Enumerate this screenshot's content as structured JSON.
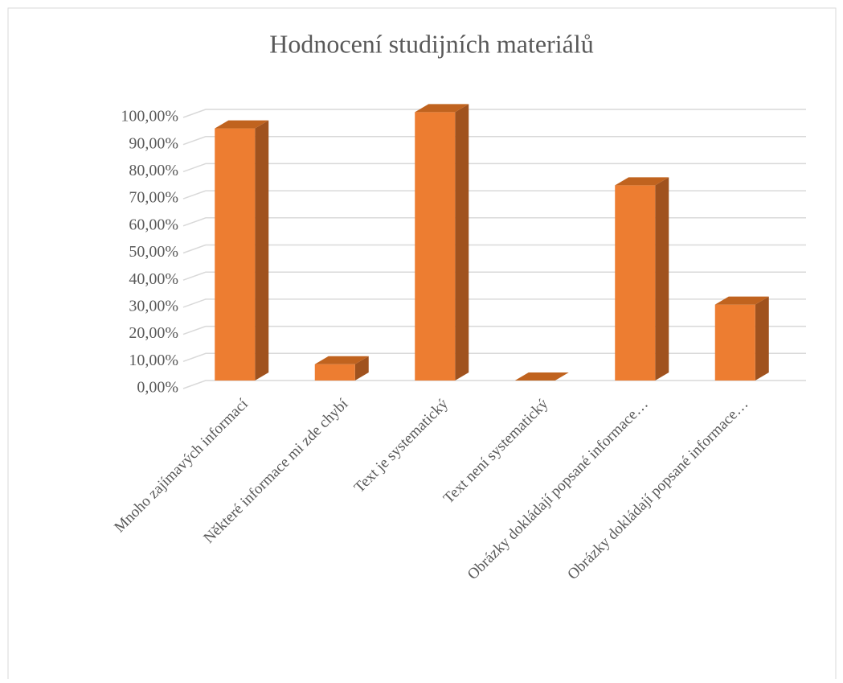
{
  "chart_data": {
    "type": "bar3d",
    "title": "Hodnocení studijních materiálů",
    "categories": [
      "Mnoho zajímavých informací",
      "Některé informace mi zde chybí",
      "Text je systematický",
      "Text není systematický",
      "Obrázky dokládají popsané informace…",
      "Obrázky dokládají popsané informace…"
    ],
    "values": [
      93,
      6,
      99,
      0,
      72,
      28
    ],
    "color": "#ed7d31",
    "ylim": [
      0,
      100
    ],
    "yticks": [
      {
        "value": 0,
        "label": "0,00%"
      },
      {
        "value": 10,
        "label": "10,00%"
      },
      {
        "value": 20,
        "label": "20,00%"
      },
      {
        "value": 30,
        "label": "30,00%"
      },
      {
        "value": 40,
        "label": "40,00%"
      },
      {
        "value": 50,
        "label": "50,00%"
      },
      {
        "value": 60,
        "label": "60,00%"
      },
      {
        "value": 70,
        "label": "70,00%"
      },
      {
        "value": 80,
        "label": "80,00%"
      },
      {
        "value": 90,
        "label": "90,00%"
      },
      {
        "value": 100,
        "label": "100,00%"
      }
    ],
    "grid": true
  }
}
